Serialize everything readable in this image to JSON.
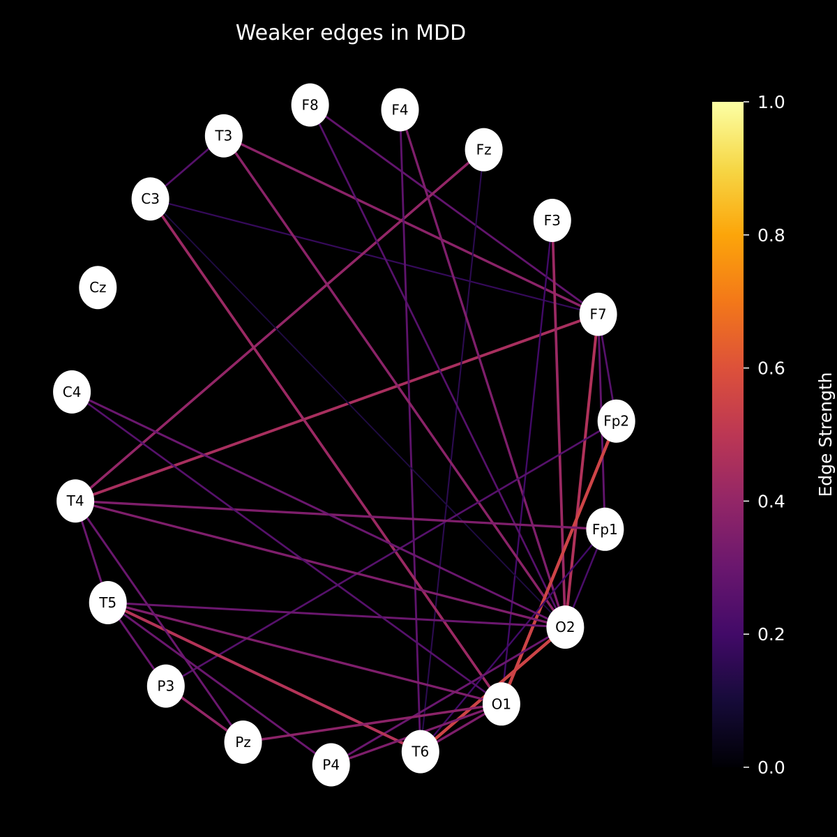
{
  "title": "Weaker edges in MDD",
  "colorbar": {
    "label": "Edge Strength",
    "colormap": "inferno",
    "range": [
      0,
      1
    ],
    "ticks": [
      "0.0",
      "0.2",
      "0.4",
      "0.6",
      "0.8",
      "1.0"
    ]
  },
  "nodes": [
    "F4",
    "Fz",
    "F3",
    "F7",
    "Fp2",
    "Fp1",
    "O2",
    "O1",
    "T6",
    "P4",
    "Pz",
    "P3",
    "T5",
    "T4",
    "C4",
    "Cz",
    "C3",
    "T3",
    "F8"
  ],
  "edges": [
    {
      "source": "F7",
      "target": "T4",
      "strength": 0.45
    },
    {
      "source": "F7",
      "target": "O2",
      "strength": 0.47
    },
    {
      "source": "F7",
      "target": "T3",
      "strength": 0.38
    },
    {
      "source": "F7",
      "target": "F8",
      "strength": 0.28
    },
    {
      "source": "F7",
      "target": "C3",
      "strength": 0.17
    },
    {
      "source": "F7",
      "target": "Fp2",
      "strength": 0.25
    },
    {
      "source": "F7",
      "target": "Fp1",
      "strength": 0.28
    },
    {
      "source": "Fz",
      "target": "T4",
      "strength": 0.4
    },
    {
      "source": "Fz",
      "target": "T6",
      "strength": 0.15
    },
    {
      "source": "F4",
      "target": "O2",
      "strength": 0.35
    },
    {
      "source": "F4",
      "target": "T6",
      "strength": 0.27
    },
    {
      "source": "F3",
      "target": "O2",
      "strength": 0.42
    },
    {
      "source": "F3",
      "target": "O1",
      "strength": 0.2
    },
    {
      "source": "F8",
      "target": "O2",
      "strength": 0.25
    },
    {
      "source": "T3",
      "target": "O2",
      "strength": 0.38
    },
    {
      "source": "T3",
      "target": "C3",
      "strength": 0.25
    },
    {
      "source": "C3",
      "target": "O1",
      "strength": 0.42
    },
    {
      "source": "C3",
      "target": "O2",
      "strength": 0.12
    },
    {
      "source": "Fp2",
      "target": "O1",
      "strength": 0.55
    },
    {
      "source": "Fp2",
      "target": "P3",
      "strength": 0.25
    },
    {
      "source": "Fp1",
      "target": "T4",
      "strength": 0.35
    },
    {
      "source": "Fp1",
      "target": "T6",
      "strength": 0.2
    },
    {
      "source": "Fp1",
      "target": "O2",
      "strength": 0.22
    },
    {
      "source": "O2",
      "target": "T4",
      "strength": 0.35
    },
    {
      "source": "O2",
      "target": "C4",
      "strength": 0.3
    },
    {
      "source": "O2",
      "target": "T5",
      "strength": 0.3
    },
    {
      "source": "O2",
      "target": "T6",
      "strength": 0.55
    },
    {
      "source": "O2",
      "target": "P4",
      "strength": 0.3
    },
    {
      "source": "C4",
      "target": "O1",
      "strength": 0.25
    },
    {
      "source": "T5",
      "target": "O1",
      "strength": 0.35
    },
    {
      "source": "T5",
      "target": "T6",
      "strength": 0.48
    },
    {
      "source": "T5",
      "target": "P4",
      "strength": 0.3
    },
    {
      "source": "T5",
      "target": "P3",
      "strength": 0.3
    },
    {
      "source": "T5",
      "target": "T4",
      "strength": 0.3
    },
    {
      "source": "T4",
      "target": "Pz",
      "strength": 0.3
    },
    {
      "source": "P3",
      "target": "Pz",
      "strength": 0.4
    },
    {
      "source": "Pz",
      "target": "O1",
      "strength": 0.38
    },
    {
      "source": "P4",
      "target": "O1",
      "strength": 0.35
    },
    {
      "source": "T6",
      "target": "O1",
      "strength": 0.35
    }
  ]
}
